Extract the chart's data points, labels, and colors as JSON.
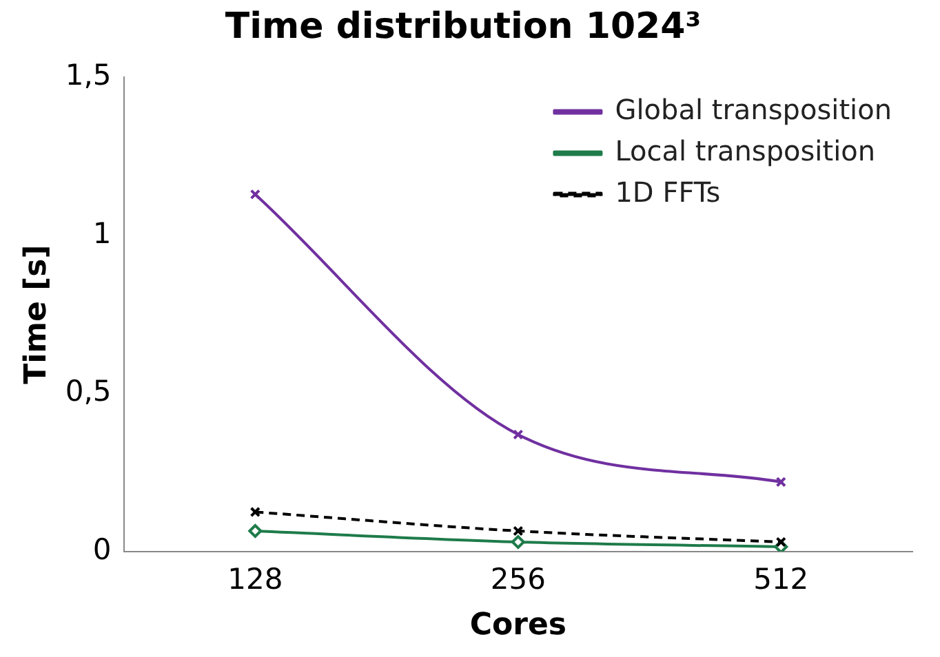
{
  "chart_data": {
    "type": "line",
    "title": "Time distribution 1024³",
    "xlabel": "Cores",
    "ylabel": "Time [s]",
    "categories": [
      "128",
      "256",
      "512"
    ],
    "series": [
      {
        "name": "Global transposition",
        "color": "#7030a0",
        "values": [
          1.13,
          0.37,
          0.22
        ],
        "marker": "cross",
        "line_style": "solid"
      },
      {
        "name": "Local transposition",
        "color": "#1e7b4a",
        "values": [
          0.065,
          0.03,
          0.015
        ],
        "marker": "diamond",
        "line_style": "solid"
      },
      {
        "name": "1D FFTs",
        "color": "#000000",
        "values": [
          0.125,
          0.065,
          0.03
        ],
        "marker": "cross",
        "line_style": "dashed"
      }
    ],
    "ylim": [
      0,
      1.5
    ],
    "yticks": [
      0,
      {
        "value": 0.5,
        "label": "0,5"
      },
      1,
      {
        "value": 1.5,
        "label": "1,5"
      }
    ],
    "grid": false,
    "legend": "top right"
  }
}
